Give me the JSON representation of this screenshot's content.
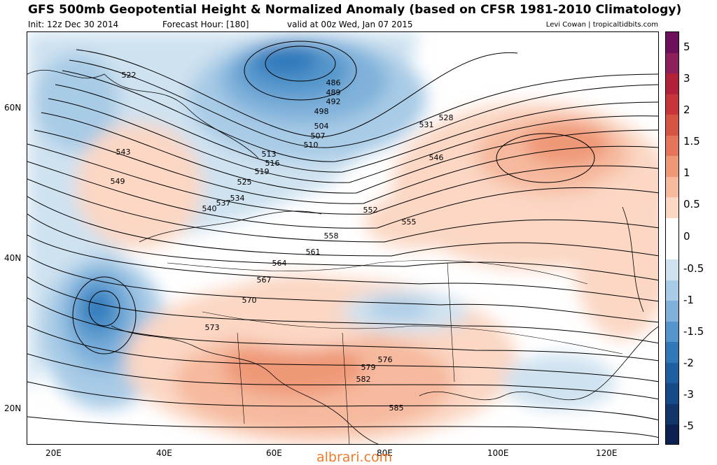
{
  "header": {
    "title": "GFS 500mb Geopotential Height & Normalized Anomaly (based on CFSR 1981-2010 Climatology)",
    "init": "Init: 12z Dec 30 2014",
    "forecast_hour": "Forecast Hour: [180]",
    "valid": "valid at 00z Wed, Jan 07 2015",
    "credit": "Levi Cowan | tropicaltidbits.com"
  },
  "axes": {
    "lat_labels": [
      "60N",
      "40N",
      "20N"
    ],
    "lon_labels": [
      "20E",
      "40E",
      "60E",
      "80E",
      "100E",
      "120E"
    ]
  },
  "colorbar": {
    "labels": [
      "5",
      "3",
      "2",
      "1.5",
      "1",
      "0.5",
      "0",
      "-0.5",
      "-1",
      "-1.5",
      "-2",
      "-3",
      "-5"
    ],
    "colors": [
      "#6d0f5a",
      "#8e1f5d",
      "#b3203a",
      "#c9343a",
      "#d75445",
      "#e5745c",
      "#ef9877",
      "#f6b99e",
      "#fbd7c4",
      "#ffffff",
      "#ffffff",
      "#cfe2f0",
      "#a8cbe6",
      "#7fb1da",
      "#5496cc",
      "#2f79bb",
      "#1d5fa2",
      "#174a88",
      "#12356b",
      "#0c2150"
    ]
  },
  "height_contour_labels": [
    "486",
    "489",
    "492",
    "498",
    "504",
    "507",
    "510",
    "513",
    "516",
    "519",
    "522",
    "525",
    "528",
    "531",
    "534",
    "537",
    "540",
    "543",
    "546",
    "549",
    "552",
    "555",
    "558",
    "561",
    "564",
    "567",
    "570",
    "573",
    "576",
    "579",
    "582",
    "585"
  ],
  "watermark": "albrari.com"
}
